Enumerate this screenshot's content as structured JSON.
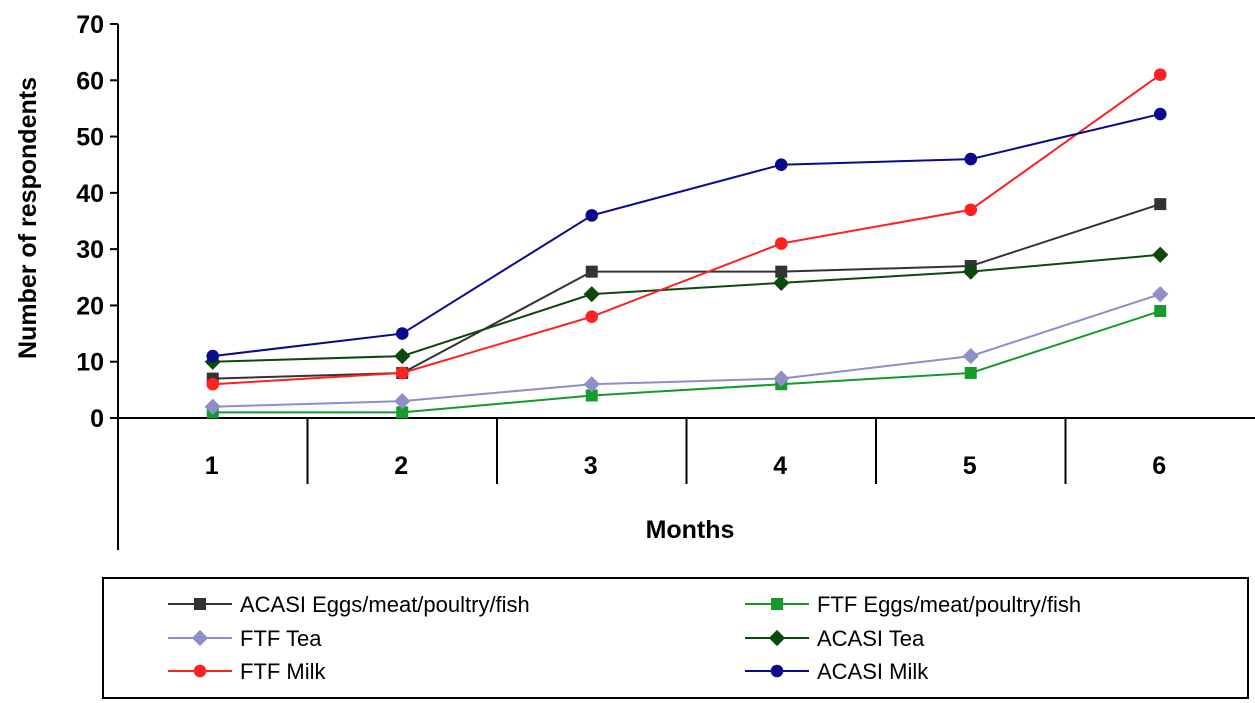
{
  "chart_data": {
    "type": "line",
    "title": "",
    "xlabel": "Months",
    "ylabel": "Number of respondents",
    "categories": [
      "1",
      "2",
      "3",
      "4",
      "5",
      "6"
    ],
    "ylim": [
      0,
      70
    ],
    "yticks": [
      0,
      10,
      20,
      30,
      40,
      50,
      60,
      70
    ],
    "grid": false,
    "legend_position": "bottom",
    "series": [
      {
        "name": "ACASI Eggs/meat/poultry/fish",
        "values": [
          7,
          8,
          26,
          26,
          27,
          38
        ],
        "color": "#333333",
        "marker": "square"
      },
      {
        "name": "FTF Eggs/meat/poultry/fish",
        "values": [
          1,
          1,
          4,
          6,
          8,
          19
        ],
        "color": "#159a2b",
        "marker": "square"
      },
      {
        "name": "FTF Tea",
        "values": [
          2,
          3,
          6,
          7,
          11,
          22
        ],
        "color": "#8f8fc8",
        "marker": "diamond"
      },
      {
        "name": "ACASI Tea",
        "values": [
          10,
          11,
          22,
          24,
          26,
          29
        ],
        "color": "#0b4a0b",
        "marker": "diamond"
      },
      {
        "name": "FTF Milk",
        "values": [
          6,
          8,
          18,
          31,
          37,
          61
        ],
        "color": "#ff2020",
        "marker": "circle"
      },
      {
        "name": "ACASI Milk",
        "values": [
          11,
          15,
          36,
          45,
          46,
          54
        ],
        "color": "#0a0a8f",
        "marker": "circle"
      }
    ]
  }
}
